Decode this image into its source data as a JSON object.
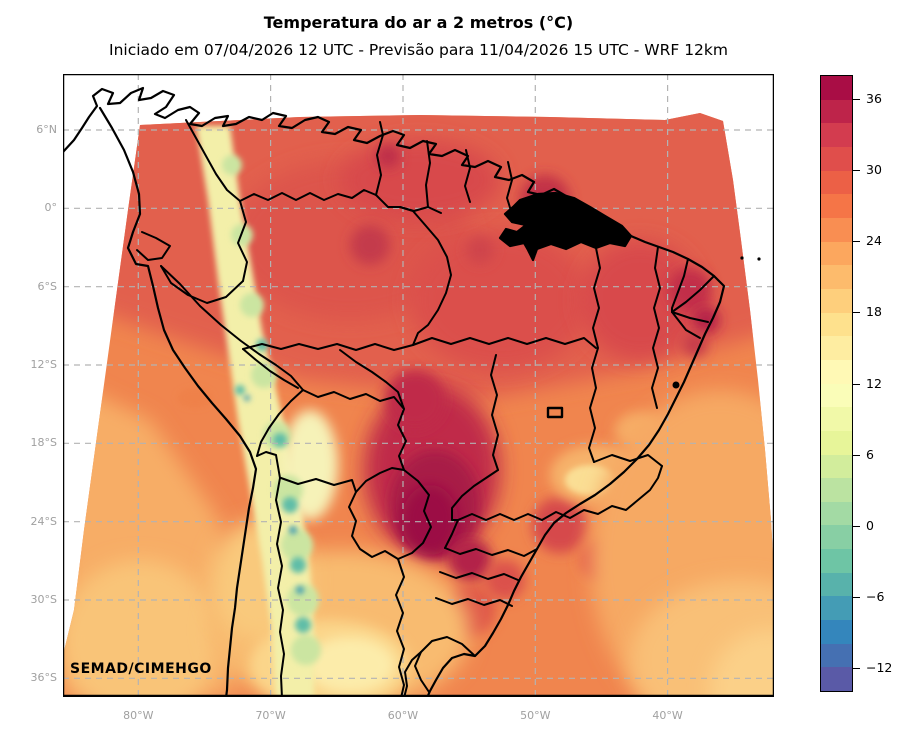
{
  "header": {
    "title": "Temperatura do ar a 2 metros (°C)",
    "subtitle": "Iniciado em 07/04/2026 12 UTC - Previsão para 11/04/2026 15 UTC - WRF 12km"
  },
  "map": {
    "watermark": "SEMAD/CIMEHGO",
    "x_tick_labels": [
      "80°W",
      "70°W",
      "60°W",
      "50°W",
      "40°W"
    ],
    "y_tick_labels": [
      "6°N",
      "0°",
      "6°S",
      "12°S",
      "18°S",
      "24°S",
      "30°S",
      "36°S"
    ],
    "grid": "dashed",
    "projection_region": "South America / Brazil WRF 12km domain"
  },
  "colorbar": {
    "unit": "°C",
    "vmin": -14,
    "vmax": 38,
    "band_step": 2,
    "ticks": [
      {
        "value": 36,
        "label": "36"
      },
      {
        "value": 30,
        "label": "30"
      },
      {
        "value": 24,
        "label": "24"
      },
      {
        "value": 18,
        "label": "18"
      },
      {
        "value": 12,
        "label": "12"
      },
      {
        "value": 6,
        "label": "6"
      },
      {
        "value": 0,
        "label": "0"
      },
      {
        "value": -6,
        "label": "−6"
      },
      {
        "value": -12,
        "label": "−12"
      }
    ],
    "band_colors_bottom_to_top": [
      "#5a5aa7",
      "#4570b2",
      "#3486bc",
      "#449cb5",
      "#58b2ab",
      "#6ec5a5",
      "#88cfa4",
      "#a3daa4",
      "#bbe3a1",
      "#d2ed9c",
      "#e7f599",
      "#f1f9a8",
      "#fafdb8",
      "#fff9b5",
      "#feeda1",
      "#fee18d",
      "#fecf7c",
      "#fdbb6c",
      "#fca75e",
      "#f98e52",
      "#f57547",
      "#ec6046",
      "#e04e4b",
      "#d33c4f",
      "#be244a",
      "#a90d45"
    ]
  },
  "colors": {
    "background": "#ffffff",
    "gridline": "#b3b3b3",
    "axis_tick_text": "#a0a0a0",
    "boundary_lines": "#000000"
  },
  "chart_data": {
    "type": "heatmap",
    "title": "Temperatura do ar a 2 metros (°C)",
    "subtitle": "Iniciado em 07/04/2026 12 UTC - Previsão para 11/04/2026 15 UTC - WRF 12km",
    "colorbar_ticks": [
      36,
      30,
      24,
      18,
      12,
      6,
      0,
      -6,
      -12
    ],
    "value_range": [
      -14,
      38
    ],
    "x_ticks": [
      "80°W",
      "70°W",
      "60°W",
      "50°W",
      "40°W"
    ],
    "y_ticks": [
      "6°N",
      "0°",
      "6°S",
      "12°S",
      "18°S",
      "24°S",
      "30°S",
      "36°S"
    ],
    "notes": "Forecast 2 m air temperature field over Brazil; hot (32-38°C) core over central-west Brazil and NE coast, cold (<=12°C) band along the Andes"
  }
}
